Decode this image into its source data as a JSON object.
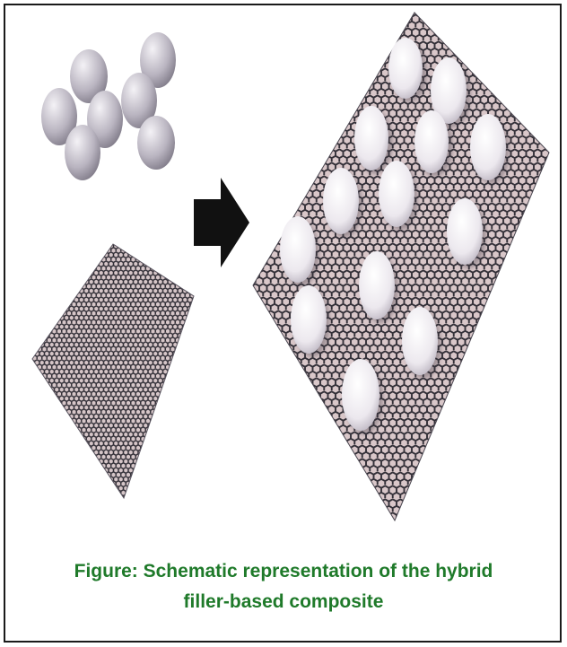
{
  "figure": {
    "caption_line1": "Figure: Schematic representation of the hybrid",
    "caption_line2": "filler-based composite",
    "colors": {
      "caption": "#1f7a2a",
      "sphere_light": "#f4f2f6",
      "sphere_dark": "#6f6a78",
      "sheet_fill": "#d9c7c9",
      "lattice": "#333038",
      "arrow": "#111111",
      "border": "#1a1a1a"
    },
    "icons": [
      "sphere-particle-icon",
      "graphene-sheet-icon",
      "right-arrow-icon",
      "composite-sheet-icon"
    ]
  }
}
